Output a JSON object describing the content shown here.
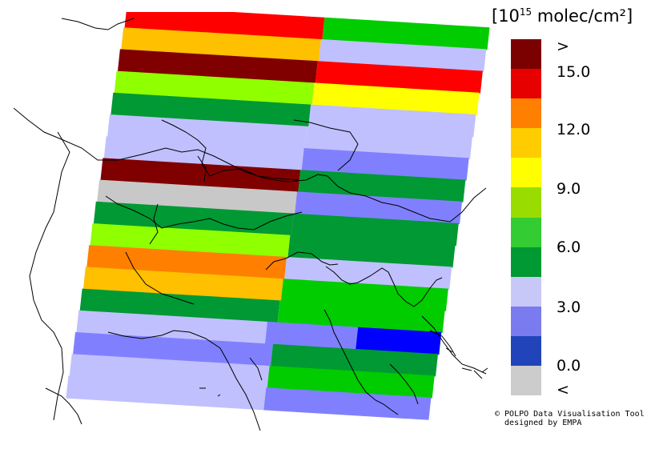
{
  "unit_label": {
    "prefix": "[10",
    "exponent": "15",
    "suffix": " molec/cm²]"
  },
  "colorbar": {
    "colors": [
      "#7b0000",
      "#e60000",
      "#ff7f00",
      "#ffcc00",
      "#ffff00",
      "#99dd00",
      "#33cc33",
      "#009933",
      "#c8c8f8",
      "#7b7bf0",
      "#2244bb",
      "#cccccc"
    ],
    "tick_labels": [
      ">",
      "15.0",
      "12.0",
      "9.0",
      "6.0",
      "3.0",
      "0.0",
      "<"
    ]
  },
  "map": {
    "colors": {
      "darkred": "#800000",
      "red": "#ff0000",
      "orange": "#ff8000",
      "amber": "#ffc000",
      "yellow": "#ffff00",
      "lime": "#90ff00",
      "green": "#009933",
      "brightgreen": "#00cc00",
      "lavender": "#c0c0ff",
      "blue": "#8080ff",
      "deepblue": "#0000ff",
      "grey": "#c8c8c8"
    },
    "rows": [
      [
        "red",
        "brightgreen"
      ],
      [
        "amber",
        "lavender"
      ],
      [
        "darkred",
        "red"
      ],
      [
        "lime",
        "yellow"
      ],
      [
        "green",
        "lavender"
      ],
      [
        "lavender",
        "lavender"
      ],
      [
        "lavender",
        "blue"
      ],
      [
        "darkred",
        "green"
      ],
      [
        "grey",
        "blue"
      ],
      [
        "green",
        "green"
      ],
      [
        "lime",
        "green"
      ],
      [
        "orange",
        "lavender"
      ],
      [
        "amber",
        "brightgreen"
      ],
      [
        "green",
        "brightgreen"
      ],
      [
        "lavender",
        "blue",
        "deepblue"
      ],
      [
        "blue",
        "green"
      ],
      [
        "lavender",
        "brightgreen"
      ],
      [
        "lavender",
        "blue"
      ]
    ]
  },
  "credit": {
    "line1": "© POLPO Data Visualisation Tool",
    "line2": "  designed by EMPA"
  }
}
